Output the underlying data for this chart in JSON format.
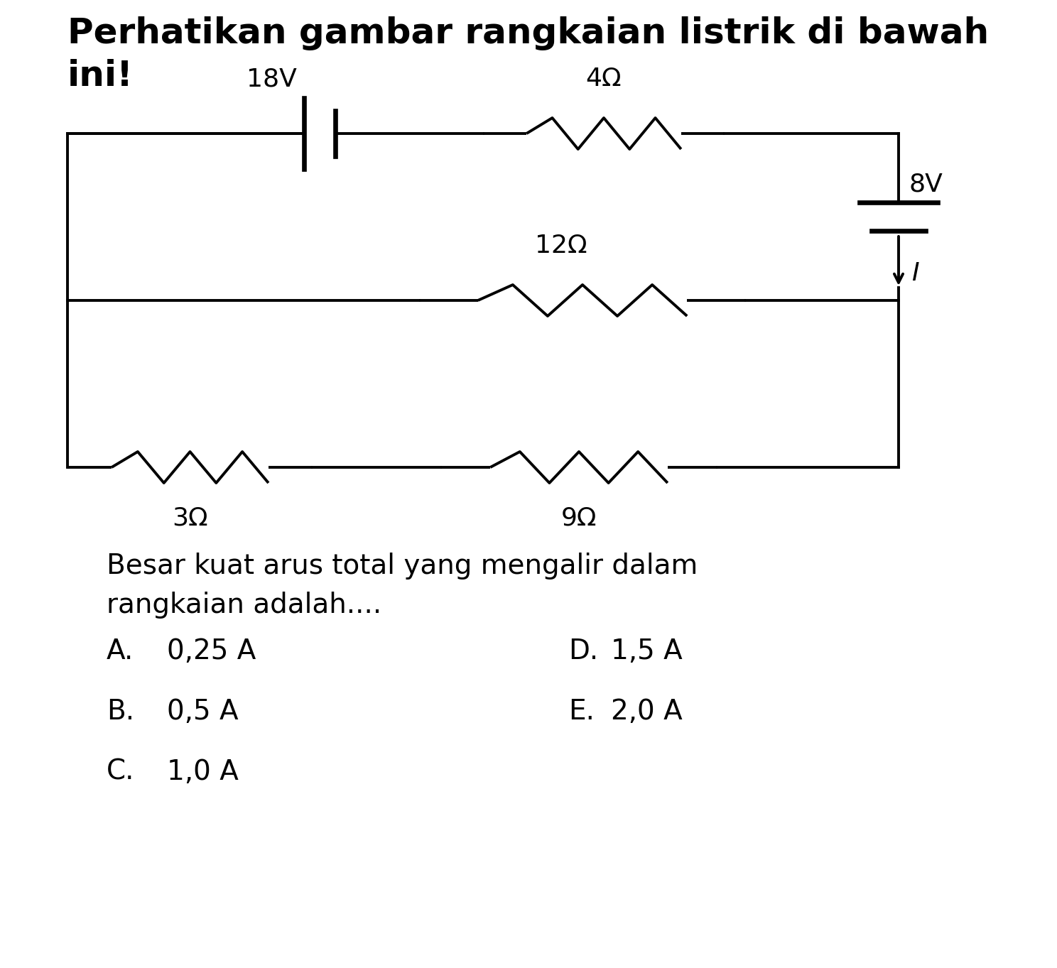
{
  "title_line1": "Perhatikan gambar rangkaian listrik di bawah",
  "title_line2": "ini!",
  "question_line1": "Besar kuat arus total yang mengalir dalam",
  "question_line2": "rangkaian adalah....",
  "options_left": [
    {
      "label": "A.",
      "text": "0,25 A"
    },
    {
      "label": "B.",
      "text": "0,5 A"
    },
    {
      "label": "C.",
      "text": "1,0 A"
    }
  ],
  "options_right": [
    {
      "label": "D.",
      "text": "1,5 A"
    },
    {
      "label": "E.",
      "text": "2,0 A"
    }
  ],
  "battery1_label": "18V",
  "battery2_label": "8V",
  "res_labels": [
    "4Ω",
    "12Ω",
    "3Ω",
    "9Ω"
  ],
  "current_label": "I",
  "bg_color": "#ffffff",
  "text_color": "#000000",
  "line_color": "#000000",
  "font_size_title": 36,
  "font_size_body": 28,
  "font_size_circuit": 26,
  "lw": 2.8
}
